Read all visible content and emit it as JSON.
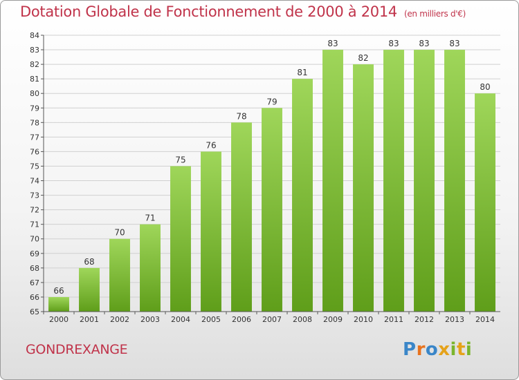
{
  "title": "Dotation Globale de Fonctionnement de 2000 à 2014",
  "subtitle": "(en milliers d'€)",
  "commune": "GONDREXANGE",
  "logo": {
    "text": "Proxiti",
    "letters": [
      {
        "ch": "P",
        "color": "#3a86c8"
      },
      {
        "ch": "r",
        "color": "#e8731e"
      },
      {
        "ch": "o",
        "color": "#3a86c8"
      },
      {
        "ch": "x",
        "color": "#e5a21a"
      },
      {
        "ch": "i",
        "color": "#7bb52d"
      },
      {
        "ch": "t",
        "color": "#e5a21a"
      },
      {
        "ch": "i",
        "color": "#7bb52d"
      }
    ]
  },
  "colors": {
    "title": "#c0334a",
    "bar_light": "#9fd65a",
    "bar_dark": "#5f9e1a",
    "grid": "#d0d0d0"
  },
  "chart_data": {
    "type": "bar",
    "categories": [
      "2000",
      "2001",
      "2002",
      "2003",
      "2004",
      "2005",
      "2006",
      "2007",
      "2008",
      "2009",
      "2010",
      "2011",
      "2012",
      "2013",
      "2014"
    ],
    "values": [
      66,
      68,
      70,
      71,
      75,
      76,
      78,
      79,
      81,
      83,
      82,
      83,
      83,
      83,
      80
    ],
    "ylim": [
      65,
      84
    ],
    "yticks": [
      65,
      66,
      67,
      68,
      69,
      70,
      71,
      72,
      73,
      74,
      75,
      76,
      77,
      78,
      79,
      80,
      81,
      82,
      83,
      84
    ],
    "grid": true,
    "xlabel": "",
    "ylabel": ""
  }
}
